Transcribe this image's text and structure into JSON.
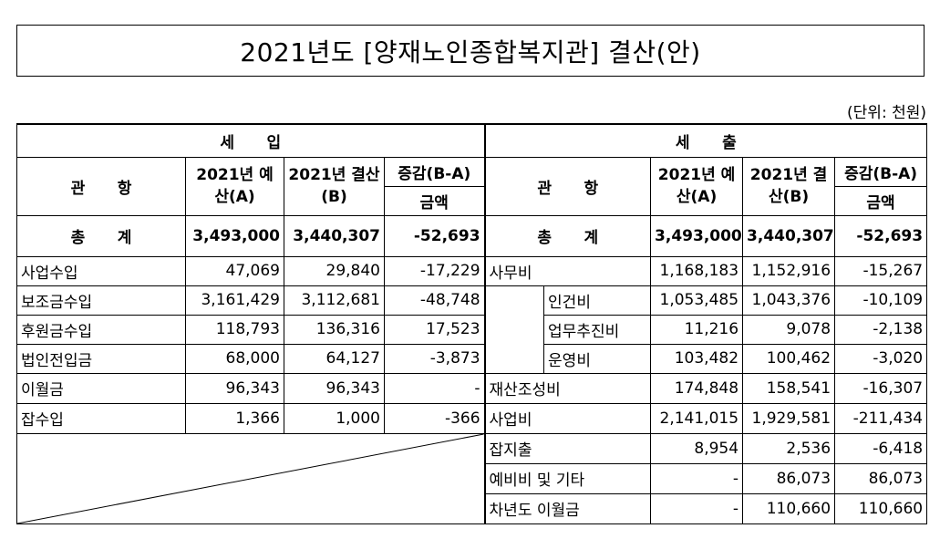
{
  "title": "2021년도 [양재노인종합복지관] 결산(안)",
  "unit": "(단위: 천원)",
  "revenue": {
    "section_label": "세      입",
    "header": {
      "item": "관      항",
      "budget": "2021년 예산(A)",
      "settlement": "2021년 결산(B)",
      "diff_top": "증감(B-A)",
      "diff_bottom": "금액"
    },
    "total": {
      "label": "총      계",
      "budget": "3,493,000",
      "settlement": "3,440,307",
      "diff": "-52,693"
    },
    "rows": [
      {
        "label": "사업수입",
        "budget": "47,069",
        "settlement": "29,840",
        "diff": "-17,229"
      },
      {
        "label": "보조금수입",
        "budget": "3,161,429",
        "settlement": "3,112,681",
        "diff": "-48,748"
      },
      {
        "label": "후원금수입",
        "budget": "118,793",
        "settlement": "136,316",
        "diff": "17,523"
      },
      {
        "label": "법인전입금",
        "budget": "68,000",
        "settlement": "64,127",
        "diff": "-3,873"
      },
      {
        "label": "이월금",
        "budget": "96,343",
        "settlement": "96,343",
        "diff": "-"
      },
      {
        "label": "잡수입",
        "budget": "1,366",
        "settlement": "1,000",
        "diff": "-366"
      }
    ]
  },
  "expense": {
    "section_label": "세      출",
    "header": {
      "item": "관      항",
      "budget": "2021년 예산(A)",
      "settlement": "2021년 결산(B)",
      "diff_top": "증감(B-A)",
      "diff_bottom": "금액"
    },
    "total": {
      "label": "총      계",
      "budget": "3,493,000",
      "settlement": "3,440,307",
      "diff": "-52,693"
    },
    "rows": [
      {
        "label": "사무비",
        "budget": "1,168,183",
        "settlement": "1,152,916",
        "diff": "-15,267"
      },
      {
        "label": "인건비",
        "budget": "1,053,485",
        "settlement": "1,043,376",
        "diff": "-10,109"
      },
      {
        "label": "업무추진비",
        "budget": "11,216",
        "settlement": "9,078",
        "diff": "-2,138"
      },
      {
        "label": "운영비",
        "budget": "103,482",
        "settlement": "100,462",
        "diff": "-3,020"
      },
      {
        "label": "재산조성비",
        "budget": "174,848",
        "settlement": "158,541",
        "diff": "-16,307"
      },
      {
        "label": "사업비",
        "budget": "2,141,015",
        "settlement": "1,929,581",
        "diff": "-211,434"
      },
      {
        "label": "잡지출",
        "budget": "8,954",
        "settlement": "2,536",
        "diff": "-6,418"
      },
      {
        "label": "예비비 및 기타",
        "budget": "-",
        "settlement": "86,073",
        "diff": "86,073"
      },
      {
        "label": "차년도 이월금",
        "budget": "-",
        "settlement": "110,660",
        "diff": "110,660"
      }
    ]
  }
}
